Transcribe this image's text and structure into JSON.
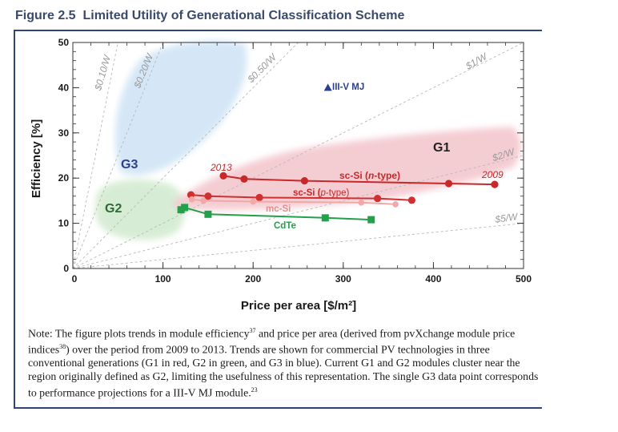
{
  "figure": {
    "title_label": "Figure 2.5",
    "title_text": "Limited Utility of Generational Classification Scheme"
  },
  "chart_data": {
    "type": "line",
    "xlabel": "Price per area [$/m²]",
    "ylabel": "Efficiency [%]",
    "xlim": [
      0,
      500
    ],
    "ylim": [
      0,
      50
    ],
    "xticks": [
      0,
      100,
      200,
      300,
      400,
      500
    ],
    "yticks": [
      0,
      10,
      20,
      30,
      40,
      50
    ],
    "series": [
      {
        "name": "sc-Si (n-type)",
        "color": "#c82828",
        "points": [
          [
            167,
            20.5
          ],
          [
            190,
            19.8
          ],
          [
            257,
            19.4
          ],
          [
            417,
            18.8
          ],
          [
            468,
            18.6
          ]
        ]
      },
      {
        "name": "sc-Si (p-type)",
        "color": "#d03030",
        "points": [
          [
            131,
            16.3
          ],
          [
            150,
            16.0
          ],
          [
            207,
            15.7
          ],
          [
            338,
            15.5
          ],
          [
            376,
            15.1
          ]
        ]
      },
      {
        "name": "mc-Si",
        "color": "#f0a8a8",
        "points": [
          [
            132,
            15.3
          ],
          [
            145,
            15.0
          ],
          [
            200,
            14.8
          ],
          [
            320,
            14.6
          ],
          [
            358,
            14.2
          ]
        ]
      },
      {
        "name": "CdTe",
        "color": "#22a04a",
        "points": [
          [
            120,
            13.0
          ],
          [
            124,
            13.5
          ],
          [
            150,
            12.0
          ],
          [
            280,
            11.2
          ],
          [
            331,
            10.8
          ]
        ]
      }
    ],
    "single_points": [
      {
        "name": "III-V MJ",
        "x": 283,
        "y": 40.0,
        "color": "#2a3f8f"
      }
    ],
    "regions": [
      {
        "name": "G1",
        "color": "#f4cbd0"
      },
      {
        "name": "G2",
        "color": "#d5ecd3"
      },
      {
        "name": "G3",
        "color": "#d3e6f6"
      }
    ],
    "cost_lines": [
      {
        "label": "$0.10/W",
        "rate": 0.1
      },
      {
        "label": "$0.20/W",
        "rate": 0.2
      },
      {
        "label": "$0.50/W",
        "rate": 0.5
      },
      {
        "label": "$1/W",
        "rate": 1.0
      },
      {
        "label": "$2/W",
        "rate": 2.0
      },
      {
        "label": "$5/W",
        "rate": 5.0
      }
    ],
    "annotations": {
      "g1": "G1",
      "g2": "G2",
      "g3": "G3",
      "year_start": "2013",
      "year_end": "2009",
      "sc_si_n_prefix": "sc-Si (",
      "sc_si_n_italic": "n",
      "sc_si_n_suffix": "-type)",
      "sc_si_p_prefix": "sc-Si (",
      "sc_si_p_italic": "p",
      "sc_si_p_suffix": "-type)",
      "mc_si": "mc-Si",
      "cdte": "CdTe",
      "iii_v": "III-V MJ"
    }
  },
  "note": {
    "prefix": "Note: The figure plots trends in module efficiency",
    "ref1": "37",
    "mid1": " and price per area (derived from pvXchange module price indices",
    "ref2": "38",
    "mid2": ") over the period from 2009 to 2013. Trends are shown for commercial PV technologies in three conventional generations (G1 in red, G2 in green, and G3 in blue). Current G1 and G2 modules cluster near the region originally defined as G2, limiting the usefulness of this representation. The single G3 data point corresponds to performance projections for a III-V MJ module.",
    "ref3": "23"
  }
}
